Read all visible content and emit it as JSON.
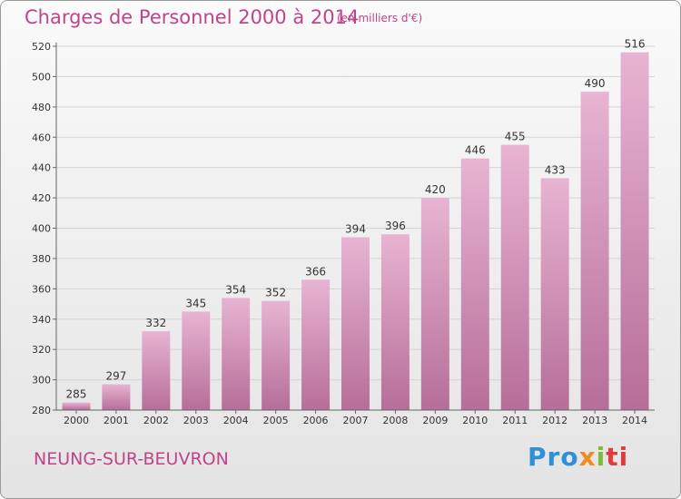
{
  "title": "Charges de Personnel 2000 à 2014",
  "subtitle": "(en milliers d'€)",
  "location": "NEUNG-SUR-BEUVRON",
  "logo": {
    "text": "Proxiti",
    "colors": [
      "#2f8fd8",
      "#f08b1e",
      "#7bbd36",
      "#e23b3b"
    ]
  },
  "colors": {
    "bar_light": "#e8b4d2",
    "bar_dark": "#b66e99",
    "accent": "#c0448a"
  },
  "chart_data": {
    "type": "bar",
    "categories": [
      "2000",
      "2001",
      "2002",
      "2003",
      "2004",
      "2005",
      "2006",
      "2007",
      "2008",
      "2009",
      "2010",
      "2011",
      "2012",
      "2013",
      "2014"
    ],
    "values": [
      285,
      297,
      332,
      345,
      354,
      352,
      366,
      394,
      396,
      420,
      446,
      455,
      433,
      490,
      516
    ],
    "ylim": [
      280,
      520
    ],
    "yticks": [
      280,
      300,
      320,
      340,
      360,
      380,
      400,
      420,
      440,
      460,
      480,
      500,
      520
    ],
    "grid": true,
    "title": "Charges de Personnel 2000 à 2014",
    "xlabel": "",
    "ylabel": ""
  }
}
